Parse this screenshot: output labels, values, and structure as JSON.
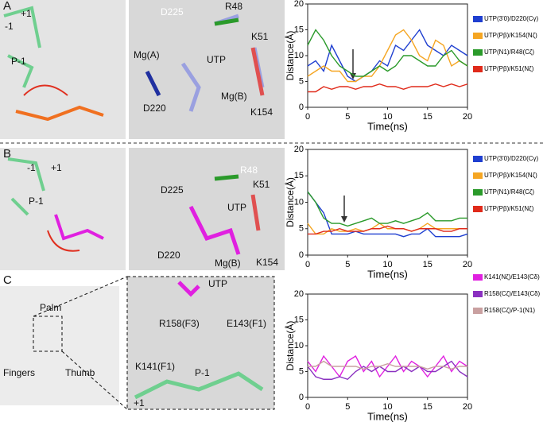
{
  "panels": {
    "a": "A",
    "b": "B",
    "c": "C"
  },
  "images": {
    "a": [
      "+1",
      "-1",
      "P-1",
      "D225",
      "R48",
      "K51",
      "Mg(A)",
      "UTP",
      "D220",
      "Mg(B)",
      "K154"
    ],
    "b": [
      "-1",
      "+1",
      "P-1",
      "D225",
      "R48",
      "K51",
      "UTP",
      "D220",
      "Mg(B)",
      "K154"
    ],
    "c": [
      "Palm",
      "Fingers",
      "Thumb",
      "UTP",
      "R158(F3)",
      "E143(F1)",
      "K141(F1)",
      "P-1",
      "+1"
    ]
  },
  "chart_data": [
    {
      "type": "line",
      "x_label": "Time(ns)",
      "y_label": "Distance(Å)",
      "x": [
        0,
        1,
        2,
        3,
        4,
        5,
        6,
        7,
        8,
        9,
        10,
        11,
        12,
        13,
        14,
        15,
        16,
        17,
        18,
        19,
        20
      ],
      "xlim": [
        0,
        20
      ],
      "xticks": [
        0,
        5,
        10,
        15,
        20
      ],
      "ylim": [
        0,
        20
      ],
      "yticks": [
        0,
        5,
        10,
        15,
        20
      ],
      "series": [
        {
          "name": "UTP(3'0)/D220(Cγ)",
          "color": "#1f3fd0",
          "values": [
            8,
            9,
            7,
            12,
            9,
            6,
            5,
            6,
            7,
            9,
            8,
            12,
            11,
            13,
            15,
            12,
            11,
            10,
            12,
            11,
            10
          ]
        },
        {
          "name": "UTP(Pβ)/K154(Nζ)",
          "color": "#f5a623",
          "values": [
            6,
            7,
            8,
            7,
            7,
            5,
            5,
            6,
            6,
            8,
            11,
            14,
            15,
            13,
            10,
            9,
            13,
            12,
            8,
            9,
            8
          ]
        },
        {
          "name": "UTP(N1)/R48(Cζ)",
          "color": "#2a9a2a",
          "values": [
            12,
            15,
            13,
            10,
            8,
            7,
            6,
            6,
            7,
            8,
            7,
            8,
            10,
            10,
            9,
            8,
            8,
            10,
            11,
            9,
            8
          ]
        },
        {
          "name": "UTP(Pβ)/K51(Nζ)",
          "color": "#e02a1a",
          "values": [
            3,
            3,
            4,
            3.5,
            4,
            4,
            3.5,
            4,
            4,
            4.5,
            4,
            4,
            3.5,
            4,
            4,
            4,
            4.5,
            4,
            4.5,
            4,
            4.5
          ]
        }
      ]
    },
    {
      "type": "line",
      "x_label": "Time(ns)",
      "y_label": "Distance(Å)",
      "x": [
        0,
        1,
        2,
        3,
        4,
        5,
        6,
        7,
        8,
        9,
        10,
        11,
        12,
        13,
        14,
        15,
        16,
        17,
        18,
        19,
        20
      ],
      "xlim": [
        0,
        20
      ],
      "xticks": [
        0,
        5,
        10,
        15,
        20
      ],
      "ylim": [
        0,
        20
      ],
      "yticks": [
        0,
        5,
        10,
        15,
        20
      ],
      "series": [
        {
          "name": "UTP(3'0)/D220(Cγ)",
          "color": "#1f3fd0",
          "values": [
            12,
            10,
            8,
            4,
            4,
            4,
            4.5,
            4,
            4,
            4,
            4,
            4,
            3.5,
            4,
            4,
            5,
            3.5,
            3.5,
            3.5,
            3.5,
            4
          ]
        },
        {
          "name": "UTP(Pβ)/K154(Nζ)",
          "color": "#f5a623",
          "values": [
            6,
            4,
            4,
            5,
            4.5,
            4.5,
            5,
            4.5,
            5,
            6,
            5,
            5,
            5,
            4.5,
            5,
            6,
            5,
            5,
            5,
            5,
            5
          ]
        },
        {
          "name": "UTP(N1)/R48(Cζ)",
          "color": "#2a9a2a",
          "values": [
            12,
            10,
            7,
            6,
            6,
            5.5,
            6,
            6.5,
            7,
            6,
            6,
            6.5,
            6,
            6.5,
            7,
            8,
            6.5,
            6.5,
            6.5,
            7,
            7
          ]
        },
        {
          "name": "UTP(Pβ)/K51(Nζ)",
          "color": "#e02a1a",
          "values": [
            4,
            4,
            4.5,
            4.5,
            5,
            4.5,
            4.5,
            4.5,
            5,
            5,
            5.5,
            5,
            5,
            4.5,
            5,
            5,
            5,
            4.5,
            4.5,
            5,
            5
          ]
        }
      ]
    },
    {
      "type": "line",
      "x_label": "Time(ns)",
      "y_label": "Distance(Å)",
      "x": [
        0,
        1,
        2,
        3,
        4,
        5,
        6,
        7,
        8,
        9,
        10,
        11,
        12,
        13,
        14,
        15,
        16,
        17,
        18,
        19,
        20
      ],
      "xlim": [
        0,
        20
      ],
      "xticks": [
        0,
        5,
        10,
        15,
        20
      ],
      "ylim": [
        0,
        20
      ],
      "yticks": [
        0,
        5,
        10,
        15,
        20
      ],
      "series": [
        {
          "name": "K141(Nζ)/E143(Cδ)",
          "color": "#e020e0",
          "values": [
            7,
            5,
            8,
            6,
            4,
            7,
            8,
            5,
            7,
            4,
            6,
            8,
            5,
            7,
            6,
            4,
            6,
            8,
            5,
            7,
            6
          ]
        },
        {
          "name": "R158(Cζ)/E143(Cδ)",
          "color": "#8a30c0",
          "values": [
            6,
            4,
            3.5,
            3.5,
            4,
            3.5,
            5,
            6,
            5,
            6,
            5,
            5,
            6,
            5,
            6,
            5,
            5,
            6,
            7,
            5,
            4
          ]
        },
        {
          "name": "R158(Cζ)/P-1(N1)",
          "color": "#c9a0a0",
          "values": [
            6,
            6,
            7,
            6,
            6,
            6,
            6,
            5.5,
            6,
            6,
            6.5,
            6,
            6,
            6,
            6,
            5.5,
            6,
            6,
            5.5,
            6,
            6
          ]
        }
      ]
    }
  ]
}
